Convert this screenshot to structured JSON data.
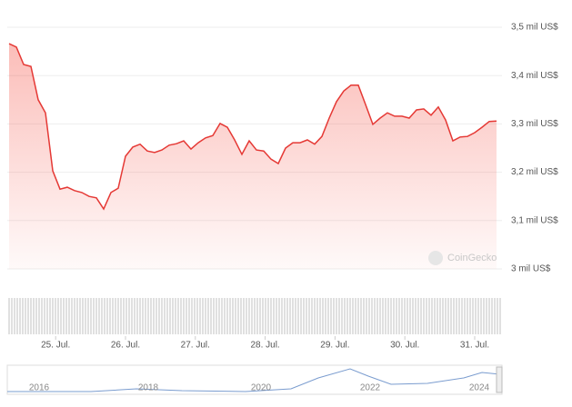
{
  "chart_data": {
    "type": "area",
    "color": "#e53935",
    "x": [
      0,
      2.5,
      5,
      7.5,
      10,
      12.5,
      15,
      17.5,
      20,
      22.5,
      25,
      27.5,
      30,
      32.5,
      35,
      37.5,
      40,
      42.5,
      45,
      47.5,
      50,
      52.5,
      55,
      57.5,
      60,
      62.5,
      65,
      67.5,
      70,
      72.5,
      75,
      77.5,
      80,
      82.5,
      85,
      87.5,
      90,
      92.5,
      95,
      97.5,
      100,
      102.5,
      105,
      107.5,
      110,
      112.5,
      115,
      117.5,
      120,
      122.5,
      125,
      127.5,
      130,
      132.5,
      135,
      137.5,
      140,
      142.5,
      145,
      147.5,
      150,
      152.5,
      155,
      157.5,
      160,
      162.5,
      165,
      167.5
    ],
    "values": [
      3.466,
      3.459,
      3.423,
      3.419,
      3.35,
      3.323,
      3.203,
      3.165,
      3.169,
      3.162,
      3.158,
      3.15,
      3.147,
      3.124,
      3.158,
      3.167,
      3.233,
      3.252,
      3.258,
      3.244,
      3.241,
      3.246,
      3.256,
      3.259,
      3.265,
      3.248,
      3.261,
      3.271,
      3.276,
      3.301,
      3.293,
      3.267,
      3.237,
      3.265,
      3.246,
      3.244,
      3.227,
      3.218,
      3.25,
      3.261,
      3.261,
      3.267,
      3.258,
      3.274,
      3.312,
      3.346,
      3.368,
      3.38,
      3.38,
      3.34,
      3.299,
      3.312,
      3.323,
      3.316,
      3.316,
      3.312,
      3.329,
      3.331,
      3.318,
      3.335,
      3.308,
      3.265,
      3.273,
      3.274,
      3.282,
      3.293,
      3.305,
      3.306
    ],
    "xlim": [
      0,
      167.5
    ],
    "ylim": [
      3,
      3.5
    ],
    "yticks": [
      {
        "value": 3,
        "label": "3 mil US$"
      },
      {
        "value": 3.1,
        "label": "3,1 mil US$"
      },
      {
        "value": 3.2,
        "label": "3,2 mil US$"
      },
      {
        "value": 3.3,
        "label": "3,3 mil US$"
      },
      {
        "value": 3.4,
        "label": "3,4 mil US$"
      },
      {
        "value": 3.5,
        "label": "3,5 mil US$"
      }
    ],
    "xticks": [
      {
        "value": 16,
        "label": "25. Jul."
      },
      {
        "value": 40,
        "label": "26. Jul."
      },
      {
        "value": 64,
        "label": "27. Jul."
      },
      {
        "value": 88,
        "label": "28. Jul."
      },
      {
        "value": 112,
        "label": "29. Jul."
      },
      {
        "value": 136,
        "label": "30. Jul."
      },
      {
        "value": 160,
        "label": "31. Jul."
      }
    ],
    "grid": true
  },
  "watermark": "CoinGecko",
  "navigator": {
    "labels": [
      "2016",
      "2018",
      "2020",
      "2022",
      "2024"
    ]
  }
}
